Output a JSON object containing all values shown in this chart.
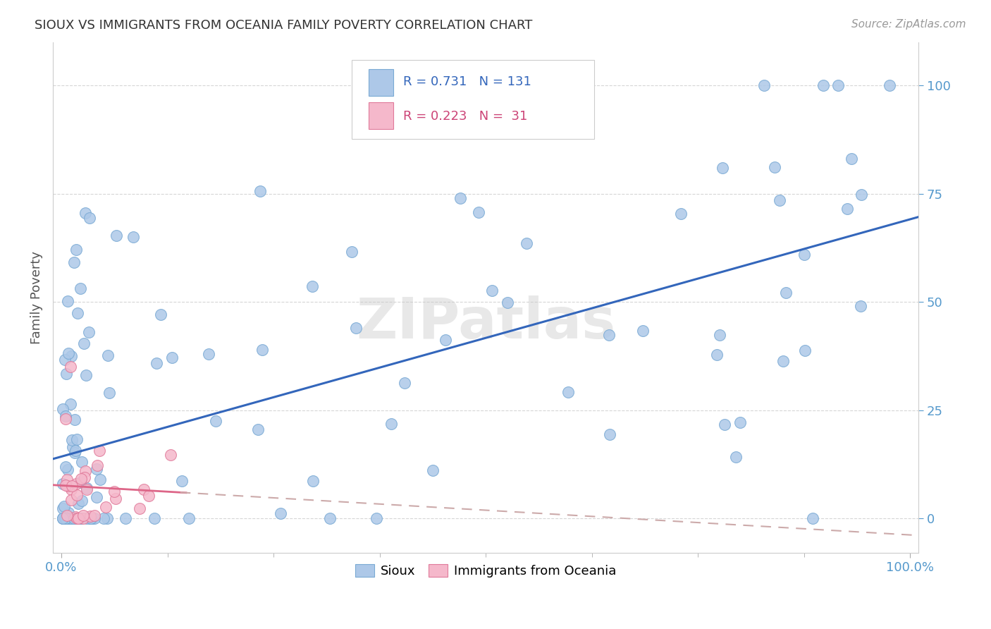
{
  "title": "SIOUX VS IMMIGRANTS FROM OCEANIA FAMILY POVERTY CORRELATION CHART",
  "source": "Source: ZipAtlas.com",
  "ylabel": "Family Poverty",
  "sioux_R": 0.731,
  "sioux_N": 131,
  "oceania_R": 0.223,
  "oceania_N": 31,
  "sioux_color": "#adc8e8",
  "sioux_edge_color": "#7aaad4",
  "oceania_color": "#f5b8cb",
  "oceania_edge_color": "#e07a9a",
  "trend_sioux_color": "#3366bb",
  "trend_oceania_solid_color": "#dd6688",
  "trend_oceania_dash_color": "#ccaaaa",
  "watermark_text": "ZIPatlas",
  "background_color": "#ffffff",
  "legend_R1_color": "#3366bb",
  "legend_R2_color": "#cc4477"
}
